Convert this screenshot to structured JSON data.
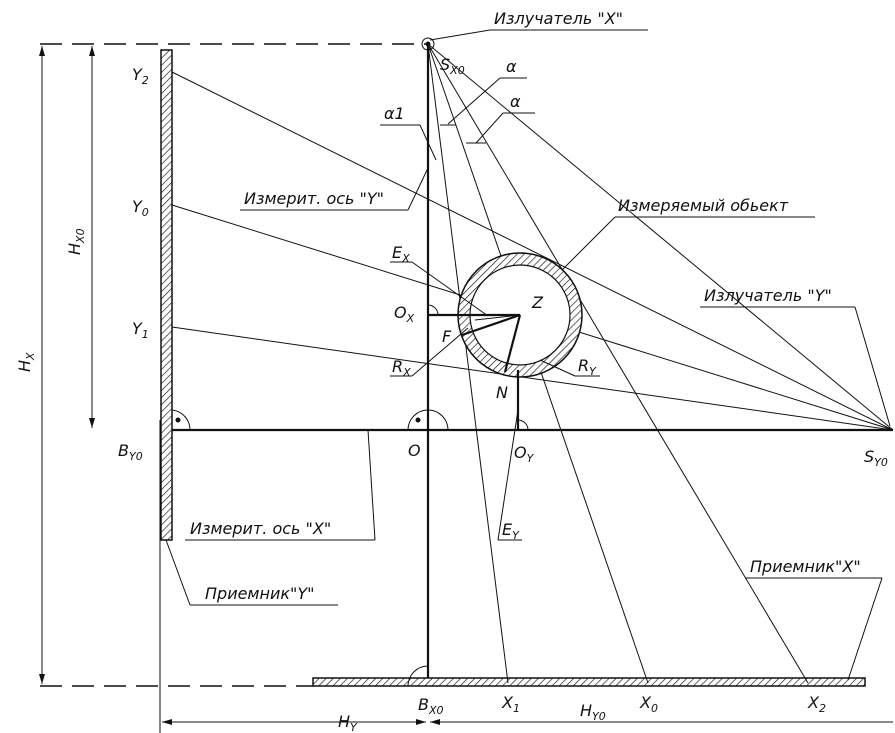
{
  "labels": {
    "emitter_x": "Излучатель \"X\"",
    "emitter_y": "Излучатель \"Y\"",
    "object": "Измеряемый обьект",
    "axis_y": "Измерит. ось \"Y\"",
    "axis_x": "Измерит. ось \"X\"",
    "receiver_y": "Приемник\"Y\"",
    "receiver_x": "Приемник\"X\"",
    "alpha_top": "α",
    "alpha_mid": "α",
    "alpha1": "α1",
    "sx0": {
      "main": "S",
      "sub": "X0"
    },
    "sy0": {
      "main": "S",
      "sub": "Y0"
    },
    "y2": {
      "main": "Y",
      "sub": "2"
    },
    "y0": {
      "main": "Y",
      "sub": "0"
    },
    "y1": {
      "main": "Y",
      "sub": "1"
    },
    "x1": {
      "main": "X",
      "sub": "1"
    },
    "x0": {
      "main": "X",
      "sub": "0"
    },
    "x2": {
      "main": "X",
      "sub": "2"
    },
    "ex": {
      "main": "E",
      "sub": "X"
    },
    "ey": {
      "main": "E",
      "sub": "Y"
    },
    "ox": {
      "main": "O",
      "sub": "X"
    },
    "oy": {
      "main": "O",
      "sub": "Y"
    },
    "rx": {
      "main": "R",
      "sub": "X"
    },
    "ry": {
      "main": "R",
      "sub": "Y"
    },
    "by0": {
      "main": "B",
      "sub": "Y0"
    },
    "bx0": {
      "main": "B",
      "sub": "X0"
    },
    "hx": {
      "main": "H",
      "sub": "X"
    },
    "hx0": {
      "main": "H",
      "sub": "X0"
    },
    "hy": {
      "main": "H",
      "sub": "Y"
    },
    "hy0": {
      "main": "H",
      "sub": "Y0"
    },
    "o": "O",
    "f": "F",
    "n": "N",
    "z": "Z"
  }
}
